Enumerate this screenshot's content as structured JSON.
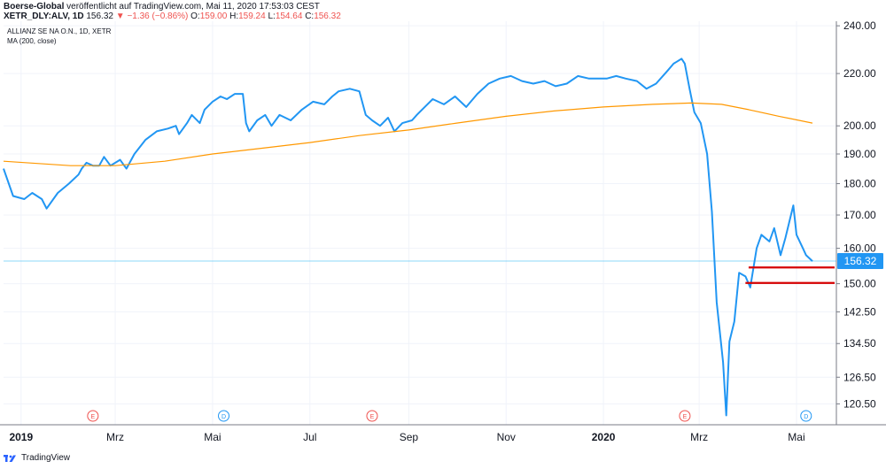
{
  "header": {
    "publisher": "Boerse-Global",
    "published_text": "veröffentlicht auf TradingView.com, Mai 11, 2020 17:53:03 CEST",
    "symbol_line": "XETR_DLY:ALV, 1D",
    "last": "156.32",
    "change": "−1.36 (−0.86%)",
    "o_label": "O:",
    "o_value": "159.00",
    "h_label": "H:",
    "h_value": "159.24",
    "l_label": "L:",
    "l_value": "154.64",
    "c_label": "C:",
    "c_value": "156.32"
  },
  "chart_data": {
    "type": "line",
    "title": "ALLIANZ SE NA O.N., 1D, XETR",
    "subtitle": "MA (200, close)",
    "y_ticks": [
      120.5,
      126.5,
      134.5,
      142.5,
      150,
      160,
      170,
      180,
      190,
      200,
      220,
      240
    ],
    "y_tick_labels": [
      "120.50",
      "126.50",
      "134.50",
      "142.50",
      "150.00",
      "160.00",
      "170.00",
      "180.00",
      "190.00",
      "200.00",
      "220.00",
      "240.00"
    ],
    "y_scale": "log",
    "ylim": [
      116,
      242
    ],
    "x_labels": [
      {
        "date": "2019-01-01",
        "label": "2019",
        "bold": true
      },
      {
        "date": "2019-03-01",
        "label": "Mrz",
        "bold": false
      },
      {
        "date": "2019-05-01",
        "label": "Mai",
        "bold": false
      },
      {
        "date": "2019-07-01",
        "label": "Jul",
        "bold": false
      },
      {
        "date": "2019-09-01",
        "label": "Sep",
        "bold": false
      },
      {
        "date": "2019-11-01",
        "label": "Nov",
        "bold": false
      },
      {
        "date": "2020-01-01",
        "label": "2020",
        "bold": true
      },
      {
        "date": "2020-03-01",
        "label": "Mrz",
        "bold": false
      },
      {
        "date": "2020-05-01",
        "label": "Mai",
        "bold": false
      }
    ],
    "xlim": [
      "2018-12-21",
      "2020-05-26"
    ],
    "last_price": 156.32,
    "last_price_label": "156.32",
    "event_markers": [
      {
        "date": "2019-02-15",
        "letter": "E",
        "kind": "earnings"
      },
      {
        "date": "2019-05-08",
        "letter": "D",
        "kind": "dividend"
      },
      {
        "date": "2019-08-09",
        "letter": "E",
        "kind": "earnings"
      },
      {
        "date": "2020-02-21",
        "letter": "E",
        "kind": "earnings"
      },
      {
        "date": "2020-05-07",
        "letter": "D",
        "kind": "dividend"
      }
    ],
    "series": [
      {
        "color": "#2196f3",
        "points": [
          [
            "2018-12-21",
            185
          ],
          [
            "2018-12-27",
            176
          ],
          [
            "2019-01-03",
            175
          ],
          [
            "2019-01-08",
            177
          ],
          [
            "2019-01-14",
            175
          ],
          [
            "2019-01-17",
            172
          ],
          [
            "2019-01-24",
            177
          ],
          [
            "2019-01-31",
            180
          ],
          [
            "2019-02-06",
            183
          ],
          [
            "2019-02-08",
            185
          ],
          [
            "2019-02-11",
            187
          ],
          [
            "2019-02-15",
            186
          ],
          [
            "2019-02-19",
            186
          ],
          [
            "2019-02-22",
            189
          ],
          [
            "2019-02-26",
            186
          ],
          [
            "2019-03-04",
            188
          ],
          [
            "2019-03-08",
            185
          ],
          [
            "2019-03-13",
            190
          ],
          [
            "2019-03-20",
            195
          ],
          [
            "2019-03-27",
            198
          ],
          [
            "2019-04-03",
            199
          ],
          [
            "2019-04-08",
            200
          ],
          [
            "2019-04-10",
            197
          ],
          [
            "2019-04-15",
            201
          ],
          [
            "2019-04-18",
            204
          ],
          [
            "2019-04-23",
            201
          ],
          [
            "2019-04-26",
            206
          ],
          [
            "2019-05-01",
            209
          ],
          [
            "2019-05-06",
            211
          ],
          [
            "2019-05-10",
            210
          ],
          [
            "2019-05-15",
            212
          ],
          [
            "2019-05-20",
            212
          ],
          [
            "2019-05-22",
            201
          ],
          [
            "2019-05-24",
            198
          ],
          [
            "2019-05-29",
            202
          ],
          [
            "2019-06-03",
            204
          ],
          [
            "2019-06-07",
            200
          ],
          [
            "2019-06-12",
            204
          ],
          [
            "2019-06-19",
            202
          ],
          [
            "2019-06-26",
            206
          ],
          [
            "2019-07-03",
            209
          ],
          [
            "2019-07-10",
            208
          ],
          [
            "2019-07-15",
            211
          ],
          [
            "2019-07-19",
            213
          ],
          [
            "2019-07-26",
            214
          ],
          [
            "2019-08-01",
            213
          ],
          [
            "2019-08-05",
            204
          ],
          [
            "2019-08-09",
            202
          ],
          [
            "2019-08-14",
            200
          ],
          [
            "2019-08-19",
            203
          ],
          [
            "2019-08-23",
            198
          ],
          [
            "2019-08-28",
            201
          ],
          [
            "2019-09-03",
            202
          ],
          [
            "2019-09-06",
            204
          ],
          [
            "2019-09-11",
            207
          ],
          [
            "2019-09-16",
            210
          ],
          [
            "2019-09-23",
            208
          ],
          [
            "2019-09-30",
            211
          ],
          [
            "2019-10-07",
            207
          ],
          [
            "2019-10-14",
            212
          ],
          [
            "2019-10-21",
            216
          ],
          [
            "2019-10-28",
            218
          ],
          [
            "2019-11-04",
            219
          ],
          [
            "2019-11-11",
            217
          ],
          [
            "2019-11-18",
            216
          ],
          [
            "2019-11-25",
            217
          ],
          [
            "2019-12-02",
            215
          ],
          [
            "2019-12-09",
            216
          ],
          [
            "2019-12-16",
            219
          ],
          [
            "2019-12-23",
            218
          ],
          [
            "2020-01-03",
            218
          ],
          [
            "2020-01-09",
            219
          ],
          [
            "2020-01-15",
            218
          ],
          [
            "2020-01-22",
            217
          ],
          [
            "2020-01-28",
            214
          ],
          [
            "2020-02-03",
            216
          ],
          [
            "2020-02-10",
            221
          ],
          [
            "2020-02-14",
            224
          ],
          [
            "2020-02-19",
            226
          ],
          [
            "2020-02-21",
            224
          ],
          [
            "2020-02-24",
            214
          ],
          [
            "2020-02-27",
            205
          ],
          [
            "2020-03-02",
            201
          ],
          [
            "2020-03-06",
            190
          ],
          [
            "2020-03-09",
            171
          ],
          [
            "2020-03-12",
            145
          ],
          [
            "2020-03-16",
            130
          ],
          [
            "2020-03-18",
            118
          ],
          [
            "2020-03-20",
            135
          ],
          [
            "2020-03-23",
            140
          ],
          [
            "2020-03-26",
            153
          ],
          [
            "2020-03-30",
            152
          ],
          [
            "2020-04-02",
            149
          ],
          [
            "2020-04-06",
            160
          ],
          [
            "2020-04-09",
            164
          ],
          [
            "2020-04-14",
            162
          ],
          [
            "2020-04-17",
            166
          ],
          [
            "2020-04-21",
            158
          ],
          [
            "2020-04-24",
            163
          ],
          [
            "2020-04-29",
            173
          ],
          [
            "2020-05-01",
            164
          ],
          [
            "2020-05-05",
            160
          ],
          [
            "2020-05-07",
            158
          ],
          [
            "2020-05-11",
            156.3
          ]
        ]
      },
      {
        "name": "MA (200, close)",
        "color": "#ff9800",
        "points": [
          [
            "2018-12-21",
            187.5
          ],
          [
            "2019-02-01",
            186
          ],
          [
            "2019-03-01",
            186
          ],
          [
            "2019-04-01",
            187.5
          ],
          [
            "2019-05-01",
            190
          ],
          [
            "2019-06-01",
            192
          ],
          [
            "2019-07-01",
            194
          ],
          [
            "2019-08-01",
            196.5
          ],
          [
            "2019-09-01",
            198.5
          ],
          [
            "2019-10-01",
            201
          ],
          [
            "2019-11-01",
            203.5
          ],
          [
            "2019-12-01",
            205.5
          ],
          [
            "2020-01-01",
            207
          ],
          [
            "2020-02-01",
            208
          ],
          [
            "2020-02-25",
            208.5
          ],
          [
            "2020-03-15",
            208
          ],
          [
            "2020-04-01",
            206
          ],
          [
            "2020-04-20",
            203.5
          ],
          [
            "2020-05-11",
            201
          ]
        ]
      }
    ],
    "support_lines": [
      {
        "from": "2020-04-01",
        "value": 154.5,
        "color": "#d50000"
      },
      {
        "from": "2020-03-30",
        "value": 150.2,
        "color": "#d50000"
      }
    ]
  },
  "footer": {
    "brand": "TradingView"
  }
}
